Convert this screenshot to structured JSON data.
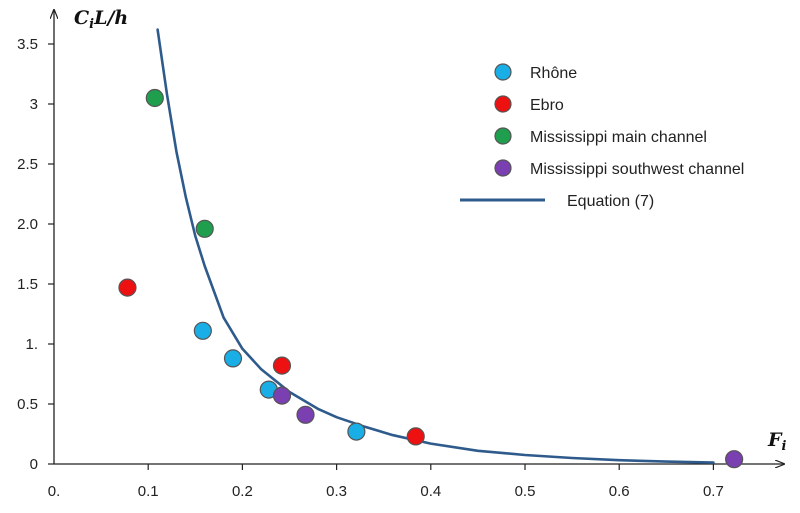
{
  "chart_data": {
    "type": "scatter",
    "ylabel": {
      "main": "C",
      "sub": "i",
      "rest": "L/h"
    },
    "xlabel": {
      "main": "F",
      "sub": "i"
    },
    "xlim": [
      0,
      0.75
    ],
    "ylim": [
      0,
      3.5
    ],
    "x_ticks": [
      {
        "value": 0,
        "label": "0."
      },
      {
        "value": 0.1,
        "label": "0.1"
      },
      {
        "value": 0.2,
        "label": "0.2"
      },
      {
        "value": 0.3,
        "label": "0.3"
      },
      {
        "value": 0.4,
        "label": "0.4"
      },
      {
        "value": 0.5,
        "label": "0.5"
      },
      {
        "value": 0.6,
        "label": "0.6"
      },
      {
        "value": 0.7,
        "label": "0.7"
      }
    ],
    "y_ticks": [
      {
        "value": 0,
        "label": "0"
      },
      {
        "value": 0.5,
        "label": "0.5"
      },
      {
        "value": 1,
        "label": "1."
      },
      {
        "value": 1.5,
        "label": "1.5"
      },
      {
        "value": 2,
        "label": "2.0"
      },
      {
        "value": 2.5,
        "label": "2.5"
      },
      {
        "value": 3,
        "label": "3"
      },
      {
        "value": 3.5,
        "label": "3.5"
      }
    ],
    "grid": false,
    "legend_position": "top-right",
    "series": [
      {
        "name": "Rhône",
        "color": "#1aaee6",
        "marker": "circle",
        "points": [
          [
            0.158,
            1.11
          ],
          [
            0.19,
            0.88
          ],
          [
            0.228,
            0.62
          ],
          [
            0.321,
            0.27
          ]
        ]
      },
      {
        "name": "Ebro",
        "color": "#ee1111",
        "marker": "circle",
        "points": [
          [
            0.078,
            1.47
          ],
          [
            0.242,
            0.82
          ],
          [
            0.384,
            0.23
          ]
        ]
      },
      {
        "name": "Mississippi main channel",
        "color": "#1f9e4e",
        "marker": "circle",
        "points": [
          [
            0.107,
            3.05
          ],
          [
            0.16,
            1.96
          ]
        ]
      },
      {
        "name": "Mississippi southwest channel",
        "color": "#7a3fb0",
        "marker": "circle",
        "points": [
          [
            0.242,
            0.57
          ],
          [
            0.267,
            0.41
          ],
          [
            0.722,
            0.04
          ]
        ]
      }
    ],
    "curve": {
      "name": "Equation (7)",
      "color": "#2e5b8c",
      "points": [
        [
          0.11,
          3.62
        ],
        [
          0.12,
          3.08
        ],
        [
          0.13,
          2.6
        ],
        [
          0.14,
          2.22
        ],
        [
          0.15,
          1.9
        ],
        [
          0.16,
          1.65
        ],
        [
          0.18,
          1.22
        ],
        [
          0.2,
          0.96
        ],
        [
          0.22,
          0.79
        ],
        [
          0.25,
          0.6
        ],
        [
          0.28,
          0.46
        ],
        [
          0.3,
          0.39
        ],
        [
          0.33,
          0.31
        ],
        [
          0.36,
          0.24
        ],
        [
          0.4,
          0.17
        ],
        [
          0.45,
          0.11
        ],
        [
          0.5,
          0.075
        ],
        [
          0.55,
          0.05
        ],
        [
          0.6,
          0.032
        ],
        [
          0.65,
          0.02
        ],
        [
          0.7,
          0.012
        ]
      ]
    }
  }
}
